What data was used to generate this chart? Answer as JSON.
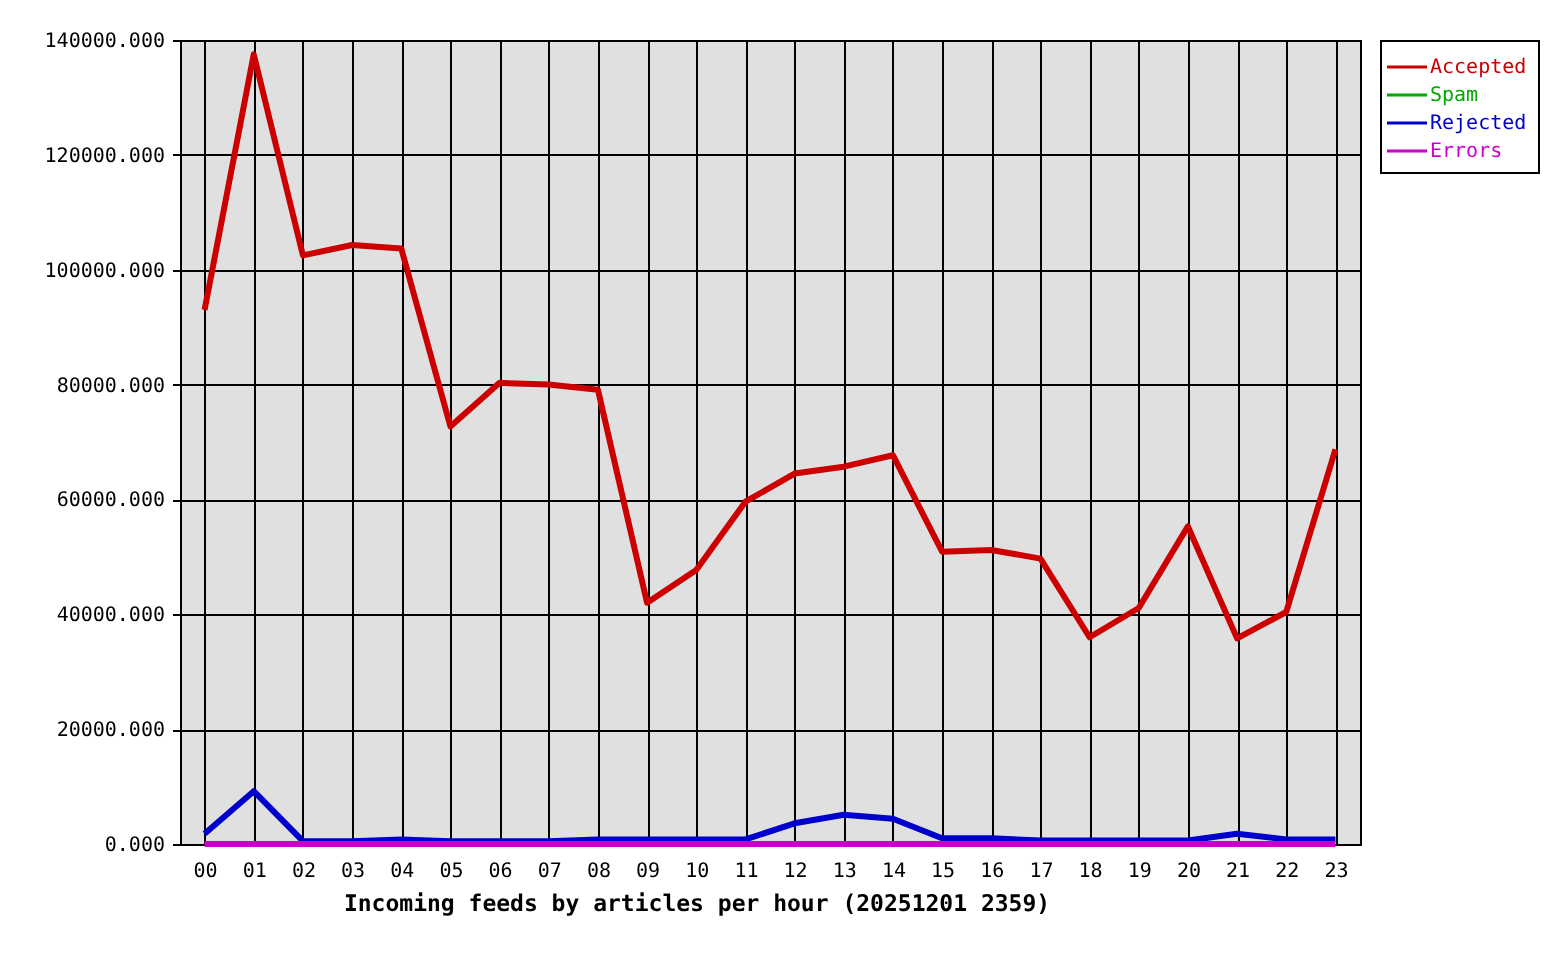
{
  "chart_data": {
    "type": "line",
    "xlabel": "Incoming feeds by articles per hour (20251201 2359)",
    "categories": [
      "00",
      "01",
      "02",
      "03",
      "04",
      "05",
      "06",
      "07",
      "08",
      "09",
      "10",
      "11",
      "12",
      "13",
      "14",
      "15",
      "16",
      "17",
      "18",
      "19",
      "20",
      "21",
      "22",
      "23"
    ],
    "series": [
      {
        "name": "Accepted",
        "color": "#cc0000",
        "values": [
          93000,
          137500,
          102500,
          104300,
          103700,
          72700,
          80300,
          80000,
          79100,
          42000,
          47700,
          59600,
          64500,
          65700,
          67700,
          50900,
          51200,
          49700,
          36000,
          41100,
          55300,
          35800,
          40400,
          68700
        ]
      },
      {
        "name": "Spam",
        "color": "#00aa00",
        "values": [
          null,
          null,
          null,
          null,
          null,
          null,
          null,
          null,
          null,
          null,
          null,
          null,
          null,
          null,
          null,
          null,
          null,
          null,
          null,
          null,
          null,
          null,
          null,
          null
        ]
      },
      {
        "name": "Rejected",
        "color": "#0000cc",
        "values": [
          1800,
          9200,
          500,
          500,
          800,
          500,
          500,
          500,
          800,
          800,
          800,
          800,
          3600,
          5100,
          4400,
          1000,
          1000,
          600,
          600,
          600,
          600,
          1800,
          800,
          800
        ]
      },
      {
        "name": "Errors",
        "color": "#cc00cc",
        "values": [
          0,
          0,
          0,
          0,
          0,
          0,
          0,
          0,
          0,
          0,
          0,
          0,
          0,
          0,
          0,
          0,
          0,
          0,
          0,
          0,
          0,
          0,
          0,
          0
        ]
      }
    ],
    "ylim": [
      0,
      140000
    ],
    "yticks": [
      {
        "value": 0,
        "label": "0.000"
      },
      {
        "value": 20000,
        "label": "20000.000"
      },
      {
        "value": 40000,
        "label": "40000.000"
      },
      {
        "value": 60000,
        "label": "60000.000"
      },
      {
        "value": 80000,
        "label": "80000.000"
      },
      {
        "value": 100000,
        "label": "100000.000"
      },
      {
        "value": 120000,
        "label": "120000.000"
      },
      {
        "value": 140000,
        "label": "140000.000"
      }
    ],
    "grid": true,
    "legend": "top right"
  }
}
